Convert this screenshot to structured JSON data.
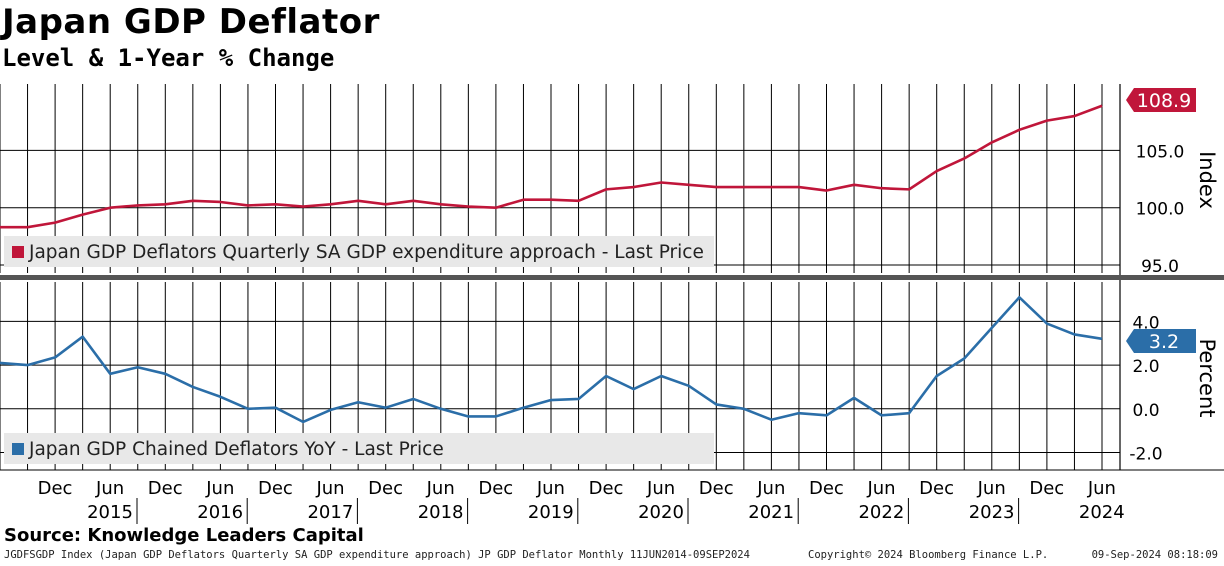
{
  "title": "Japan GDP Deflator",
  "subtitle": "Level & 1-Year % Change",
  "source": "Source: Knowledge Leaders Capital",
  "footer": {
    "left": "JGDFSGDP Index (Japan GDP Deflators Quarterly SA GDP expenditure approach) JP GDP Deflator  Monthly 11JUN2014-09SEP2024",
    "middle": "Copyright© 2024 Bloomberg Finance L.P.",
    "right": "09-Sep-2024 08:18:09"
  },
  "colors": {
    "level": "#c0163a",
    "yoy": "#2b6ea8",
    "grid": "#000000"
  },
  "chart_data": [
    {
      "type": "line",
      "panel": "top",
      "ylabel": "Index",
      "ylim": [
        94.3,
        110.8
      ],
      "yticks": [
        "95.0",
        "100.0",
        "105.0"
      ],
      "ytick_values": [
        95,
        100,
        105
      ],
      "last_value_label": "108.9",
      "legend": "Japan GDP Deflators Quarterly SA GDP expenditure approach - Last Price",
      "legend_position": "bottom-left",
      "grid": true,
      "series": [
        {
          "name": "Japan GDP Deflators Quarterly SA GDP expenditure approach - Last Price",
          "x": [
            "2014-06",
            "2014-09",
            "2014-12",
            "2015-03",
            "2015-06",
            "2015-09",
            "2015-12",
            "2016-03",
            "2016-06",
            "2016-09",
            "2016-12",
            "2017-03",
            "2017-06",
            "2017-09",
            "2017-12",
            "2018-03",
            "2018-06",
            "2018-09",
            "2018-12",
            "2019-03",
            "2019-06",
            "2019-09",
            "2019-12",
            "2020-03",
            "2020-06",
            "2020-09",
            "2020-12",
            "2021-03",
            "2021-06",
            "2021-09",
            "2021-12",
            "2022-03",
            "2022-06",
            "2022-09",
            "2022-12",
            "2023-03",
            "2023-06",
            "2023-09",
            "2023-12",
            "2024-03",
            "2024-06"
          ],
          "values": [
            98.3,
            98.3,
            98.7,
            99.4,
            100.0,
            100.2,
            100.3,
            100.6,
            100.5,
            100.2,
            100.3,
            100.1,
            100.3,
            100.6,
            100.3,
            100.6,
            100.3,
            100.1,
            100.0,
            100.7,
            100.7,
            100.6,
            101.6,
            101.8,
            102.2,
            102.0,
            101.8,
            101.8,
            101.8,
            101.8,
            101.5,
            102.0,
            101.7,
            101.6,
            103.2,
            104.3,
            105.7,
            106.8,
            107.6,
            108.0,
            108.9
          ]
        }
      ]
    },
    {
      "type": "line",
      "panel": "bottom",
      "ylabel": "Percent",
      "ylim": [
        -2.8,
        5.8
      ],
      "yticks": [
        "-2.0",
        "0.0",
        "2.0",
        "4.0"
      ],
      "ytick_values": [
        -2,
        0,
        2,
        4
      ],
      "last_value_label": "3.2",
      "legend": "Japan GDP Chained Deflators YoY - Last Price",
      "legend_position": "bottom-left",
      "grid": true,
      "series": [
        {
          "name": "Japan GDP Chained Deflators YoY - Last Price",
          "x": [
            "2014-06",
            "2014-09",
            "2014-12",
            "2015-03",
            "2015-06",
            "2015-09",
            "2015-12",
            "2016-03",
            "2016-06",
            "2016-09",
            "2016-12",
            "2017-03",
            "2017-06",
            "2017-09",
            "2017-12",
            "2018-03",
            "2018-06",
            "2018-09",
            "2018-12",
            "2019-03",
            "2019-06",
            "2019-09",
            "2019-12",
            "2020-03",
            "2020-06",
            "2020-09",
            "2020-12",
            "2021-03",
            "2021-06",
            "2021-09",
            "2021-12",
            "2022-03",
            "2022-06",
            "2022-09",
            "2022-12",
            "2023-03",
            "2023-06",
            "2023-09",
            "2023-12",
            "2024-03",
            "2024-06"
          ],
          "values": [
            2.1,
            2.0,
            2.35,
            3.3,
            1.6,
            1.9,
            1.6,
            1.0,
            0.55,
            0.0,
            0.05,
            -0.6,
            -0.05,
            0.3,
            0.05,
            0.45,
            0.0,
            -0.35,
            -0.35,
            0.05,
            0.4,
            0.45,
            1.5,
            0.9,
            1.5,
            1.05,
            0.2,
            0.0,
            -0.5,
            -0.2,
            -0.3,
            0.5,
            -0.3,
            -0.2,
            1.5,
            2.3,
            3.7,
            5.1,
            3.9,
            3.4,
            3.2
          ]
        }
      ]
    }
  ],
  "x_axis": {
    "month_labels": [
      "Dec",
      "Jun",
      "Dec",
      "Jun",
      "Dec",
      "Jun",
      "Dec",
      "Jun",
      "Dec",
      "Jun",
      "Dec",
      "Jun",
      "Dec",
      "Jun",
      "Dec",
      "Jun",
      "Dec",
      "Jun",
      "Dec",
      "Jun"
    ],
    "year_labels": [
      "2015",
      "2016",
      "2017",
      "2018",
      "2019",
      "2020",
      "2021",
      "2022",
      "2023",
      "2024"
    ]
  }
}
